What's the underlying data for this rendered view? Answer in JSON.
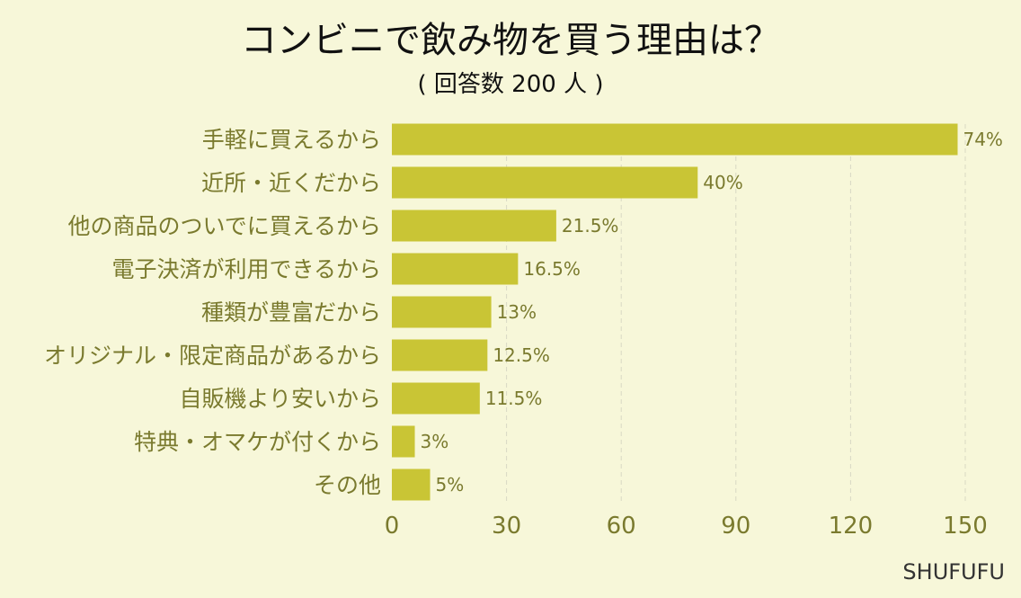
{
  "chart_data": {
    "type": "bar",
    "orientation": "horizontal",
    "title": "コンビニで飲み物を買う理由は？",
    "subtitle": "( 回答数 200 人 )",
    "categories": [
      "手軽に買えるから",
      "近所・近くだから",
      "他の商品のついでに買えるから",
      "電子決済が利用できるから",
      "種類が豊富だから",
      "オリジナル・限定商品があるから",
      "自販機より安いから",
      "特典・オマケが付くから",
      "その他"
    ],
    "values": [
      148,
      80,
      43,
      33,
      26,
      25,
      23,
      6,
      10
    ],
    "value_labels": [
      "74%",
      "40%",
      "21.5%",
      "16.5%",
      "13%",
      "12.5%",
      "11.5%",
      "3%",
      "5%"
    ],
    "xlim": [
      0,
      150
    ],
    "xticks": [
      "0",
      "30",
      "60",
      "90",
      "120",
      "150"
    ],
    "xtick_values": [
      0,
      30,
      60,
      90,
      120,
      150
    ],
    "grid": true,
    "bar_color": "#c9c535",
    "text_color": "#7a7a2e"
  },
  "brand": "SHUFUFU"
}
